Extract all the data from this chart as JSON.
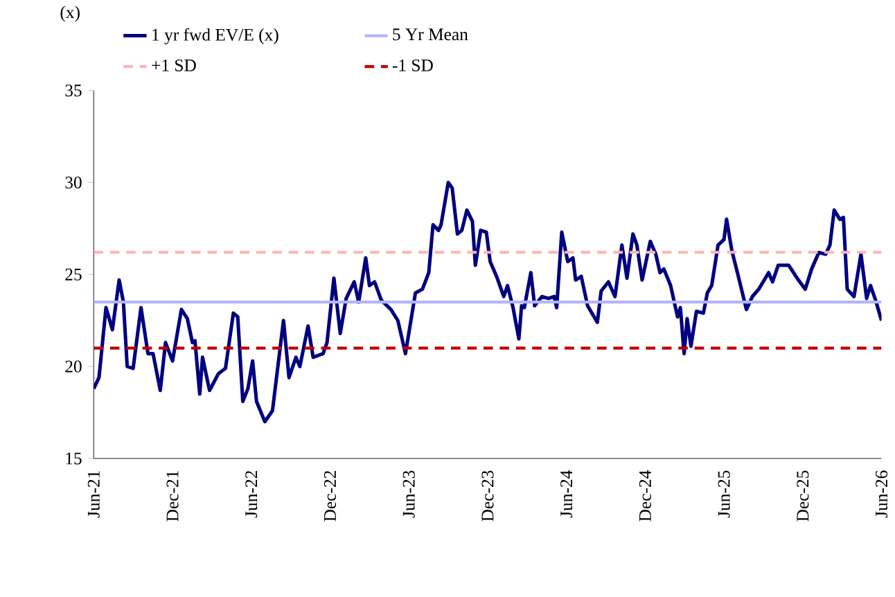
{
  "chart_data": {
    "type": "line",
    "ylabel": "(x)",
    "x": [
      "2021-06-01",
      "2021-06-13",
      "2021-06-29",
      "2021-07-14",
      "2021-07-30",
      "2021-08-09",
      "2021-08-18",
      "2021-09-01",
      "2021-09-19",
      "2021-10-05",
      "2021-10-17",
      "2021-11-03",
      "2021-11-15",
      "2021-12-01",
      "2021-12-22",
      "2022-01-05",
      "2022-01-17",
      "2022-01-23",
      "2022-02-03",
      "2022-02-09",
      "2022-02-24",
      "2022-03-16",
      "2022-04-02",
      "2022-04-20",
      "2022-04-30",
      "2022-05-12",
      "2022-05-24",
      "2022-06-04",
      "2022-06-13",
      "2022-07-02",
      "2022-07-20",
      "2022-08-15",
      "2022-08-28",
      "2022-09-13",
      "2022-09-22",
      "2022-10-11",
      "2022-10-23",
      "2022-11-15",
      "2022-11-24",
      "2022-12-10",
      "2022-12-25",
      "2023-01-08",
      "2023-01-27",
      "2023-02-06",
      "2023-02-21",
      "2023-03-01",
      "2023-03-13",
      "2023-03-29",
      "2023-04-20",
      "2023-05-06",
      "2023-05-24",
      "2023-06-16",
      "2023-07-02",
      "2023-07-17",
      "2023-07-27",
      "2023-08-09",
      "2023-08-15",
      "2023-09-01",
      "2023-09-10",
      "2023-09-22",
      "2023-10-02",
      "2023-10-14",
      "2023-10-27",
      "2023-11-03",
      "2023-11-15",
      "2023-11-28",
      "2023-12-07",
      "2023-12-22",
      "2024-01-08",
      "2024-01-17",
      "2024-01-30",
      "2024-02-12",
      "2024-02-18",
      "2024-02-24",
      "2024-03-10",
      "2024-03-19",
      "2024-04-05",
      "2024-04-20",
      "2024-05-03",
      "2024-05-09",
      "2024-05-21",
      "2024-06-04",
      "2024-06-16",
      "2024-06-22",
      "2024-07-05",
      "2024-07-20",
      "2024-08-12",
      "2024-08-21",
      "2024-09-07",
      "2024-09-22",
      "2024-10-08",
      "2024-10-20",
      "2024-11-03",
      "2024-11-12",
      "2024-11-24",
      "2024-12-13",
      "2024-12-26",
      "2025-01-05",
      "2025-01-14",
      "2025-01-30",
      "2025-02-14",
      "2025-02-20",
      "2025-02-28",
      "2025-03-07",
      "2025-03-16",
      "2025-03-29",
      "2025-04-14",
      "2025-04-23",
      "2025-05-03",
      "2025-05-18",
      "2025-06-01",
      "2025-06-07",
      "2025-06-19",
      "2025-07-05",
      "2025-07-23",
      "2025-08-06",
      "2025-08-21",
      "2025-09-13",
      "2025-09-22",
      "2025-10-05",
      "2025-10-30",
      "2025-11-21",
      "2025-12-07",
      "2025-12-22",
      "2026-01-08",
      "2026-01-24",
      "2026-02-03",
      "2026-02-12",
      "2026-02-24",
      "2026-03-04",
      "2026-03-13",
      "2026-03-29",
      "2026-04-14",
      "2026-04-27",
      "2026-05-06",
      "2026-05-18",
      "2026-06-01"
    ],
    "series": [
      {
        "name": "1 yr fwd EV/E (x)",
        "color": "#000080",
        "values": [
          18.8,
          19.4,
          23.2,
          22.0,
          24.7,
          23.5,
          20.0,
          19.9,
          23.2,
          20.7,
          20.7,
          18.7,
          21.3,
          20.3,
          23.1,
          22.6,
          21.3,
          21.4,
          18.5,
          20.5,
          18.7,
          19.6,
          19.9,
          22.9,
          22.7,
          18.1,
          18.8,
          20.3,
          18.1,
          17.0,
          17.6,
          22.5,
          19.4,
          20.5,
          20.0,
          22.2,
          20.5,
          20.7,
          21.3,
          24.8,
          21.8,
          23.7,
          24.6,
          23.5,
          25.9,
          24.4,
          24.6,
          23.6,
          23.1,
          22.5,
          20.7,
          24.0,
          24.2,
          25.1,
          27.7,
          27.4,
          27.7,
          30.0,
          29.7,
          27.2,
          27.4,
          28.5,
          27.9,
          25.5,
          27.4,
          27.3,
          25.7,
          24.9,
          23.8,
          24.4,
          23.2,
          21.5,
          23.3,
          23.2,
          25.1,
          23.3,
          23.8,
          23.7,
          23.8,
          23.2,
          27.3,
          25.7,
          25.9,
          24.7,
          24.9,
          23.3,
          22.4,
          24.1,
          24.6,
          23.8,
          26.6,
          24.8,
          27.2,
          26.6,
          24.7,
          26.8,
          26.1,
          25.1,
          25.3,
          24.4,
          22.7,
          23.2,
          20.7,
          22.6,
          21.1,
          23.0,
          22.9,
          24.0,
          24.4,
          26.6,
          26.9,
          28.0,
          26.3,
          24.8,
          23.1,
          23.8,
          24.2,
          25.1,
          24.6,
          25.5,
          25.5,
          24.7,
          24.2,
          25.3,
          26.2,
          26.1,
          26.6,
          28.5,
          28.0,
          28.1,
          24.2,
          23.8,
          26.1,
          23.7,
          24.4,
          23.6,
          22.5
        ]
      }
    ],
    "ref_lines": [
      {
        "axis": "y",
        "value": 23.5,
        "label": "5 Yr Mean",
        "color": "#b3b3ff",
        "line_style": "solid"
      },
      {
        "axis": "y",
        "value": 26.2,
        "label": "+1 SD",
        "color": "#ffb3b3",
        "line_style": "dashed"
      },
      {
        "axis": "y",
        "value": 21.0,
        "label": "-1 SD",
        "color": "#c00000",
        "line_style": "dashed"
      }
    ],
    "xlim": [
      "2021-06",
      "2026-06"
    ],
    "xticks": [
      {
        "value": "2021-06",
        "label": "Jun-21"
      },
      {
        "value": "2021-12",
        "label": "Dec-21"
      },
      {
        "value": "2022-06",
        "label": "Jun-22"
      },
      {
        "value": "2022-12",
        "label": "Dec-22"
      },
      {
        "value": "2023-06",
        "label": "Jun-23"
      },
      {
        "value": "2023-12",
        "label": "Dec-23"
      },
      {
        "value": "2024-06",
        "label": "Jun-24"
      },
      {
        "value": "2024-12",
        "label": "Dec-24"
      },
      {
        "value": "2025-06",
        "label": "Jun-25"
      },
      {
        "value": "2025-12",
        "label": "Dec-25"
      },
      {
        "value": "2026-06",
        "label": "Jun-26"
      }
    ],
    "ylim": [
      15,
      35
    ],
    "yticks": [
      15,
      20,
      25,
      30,
      35
    ],
    "grid": false,
    "legend": "top",
    "marker": "none",
    "line_style": "solid"
  }
}
